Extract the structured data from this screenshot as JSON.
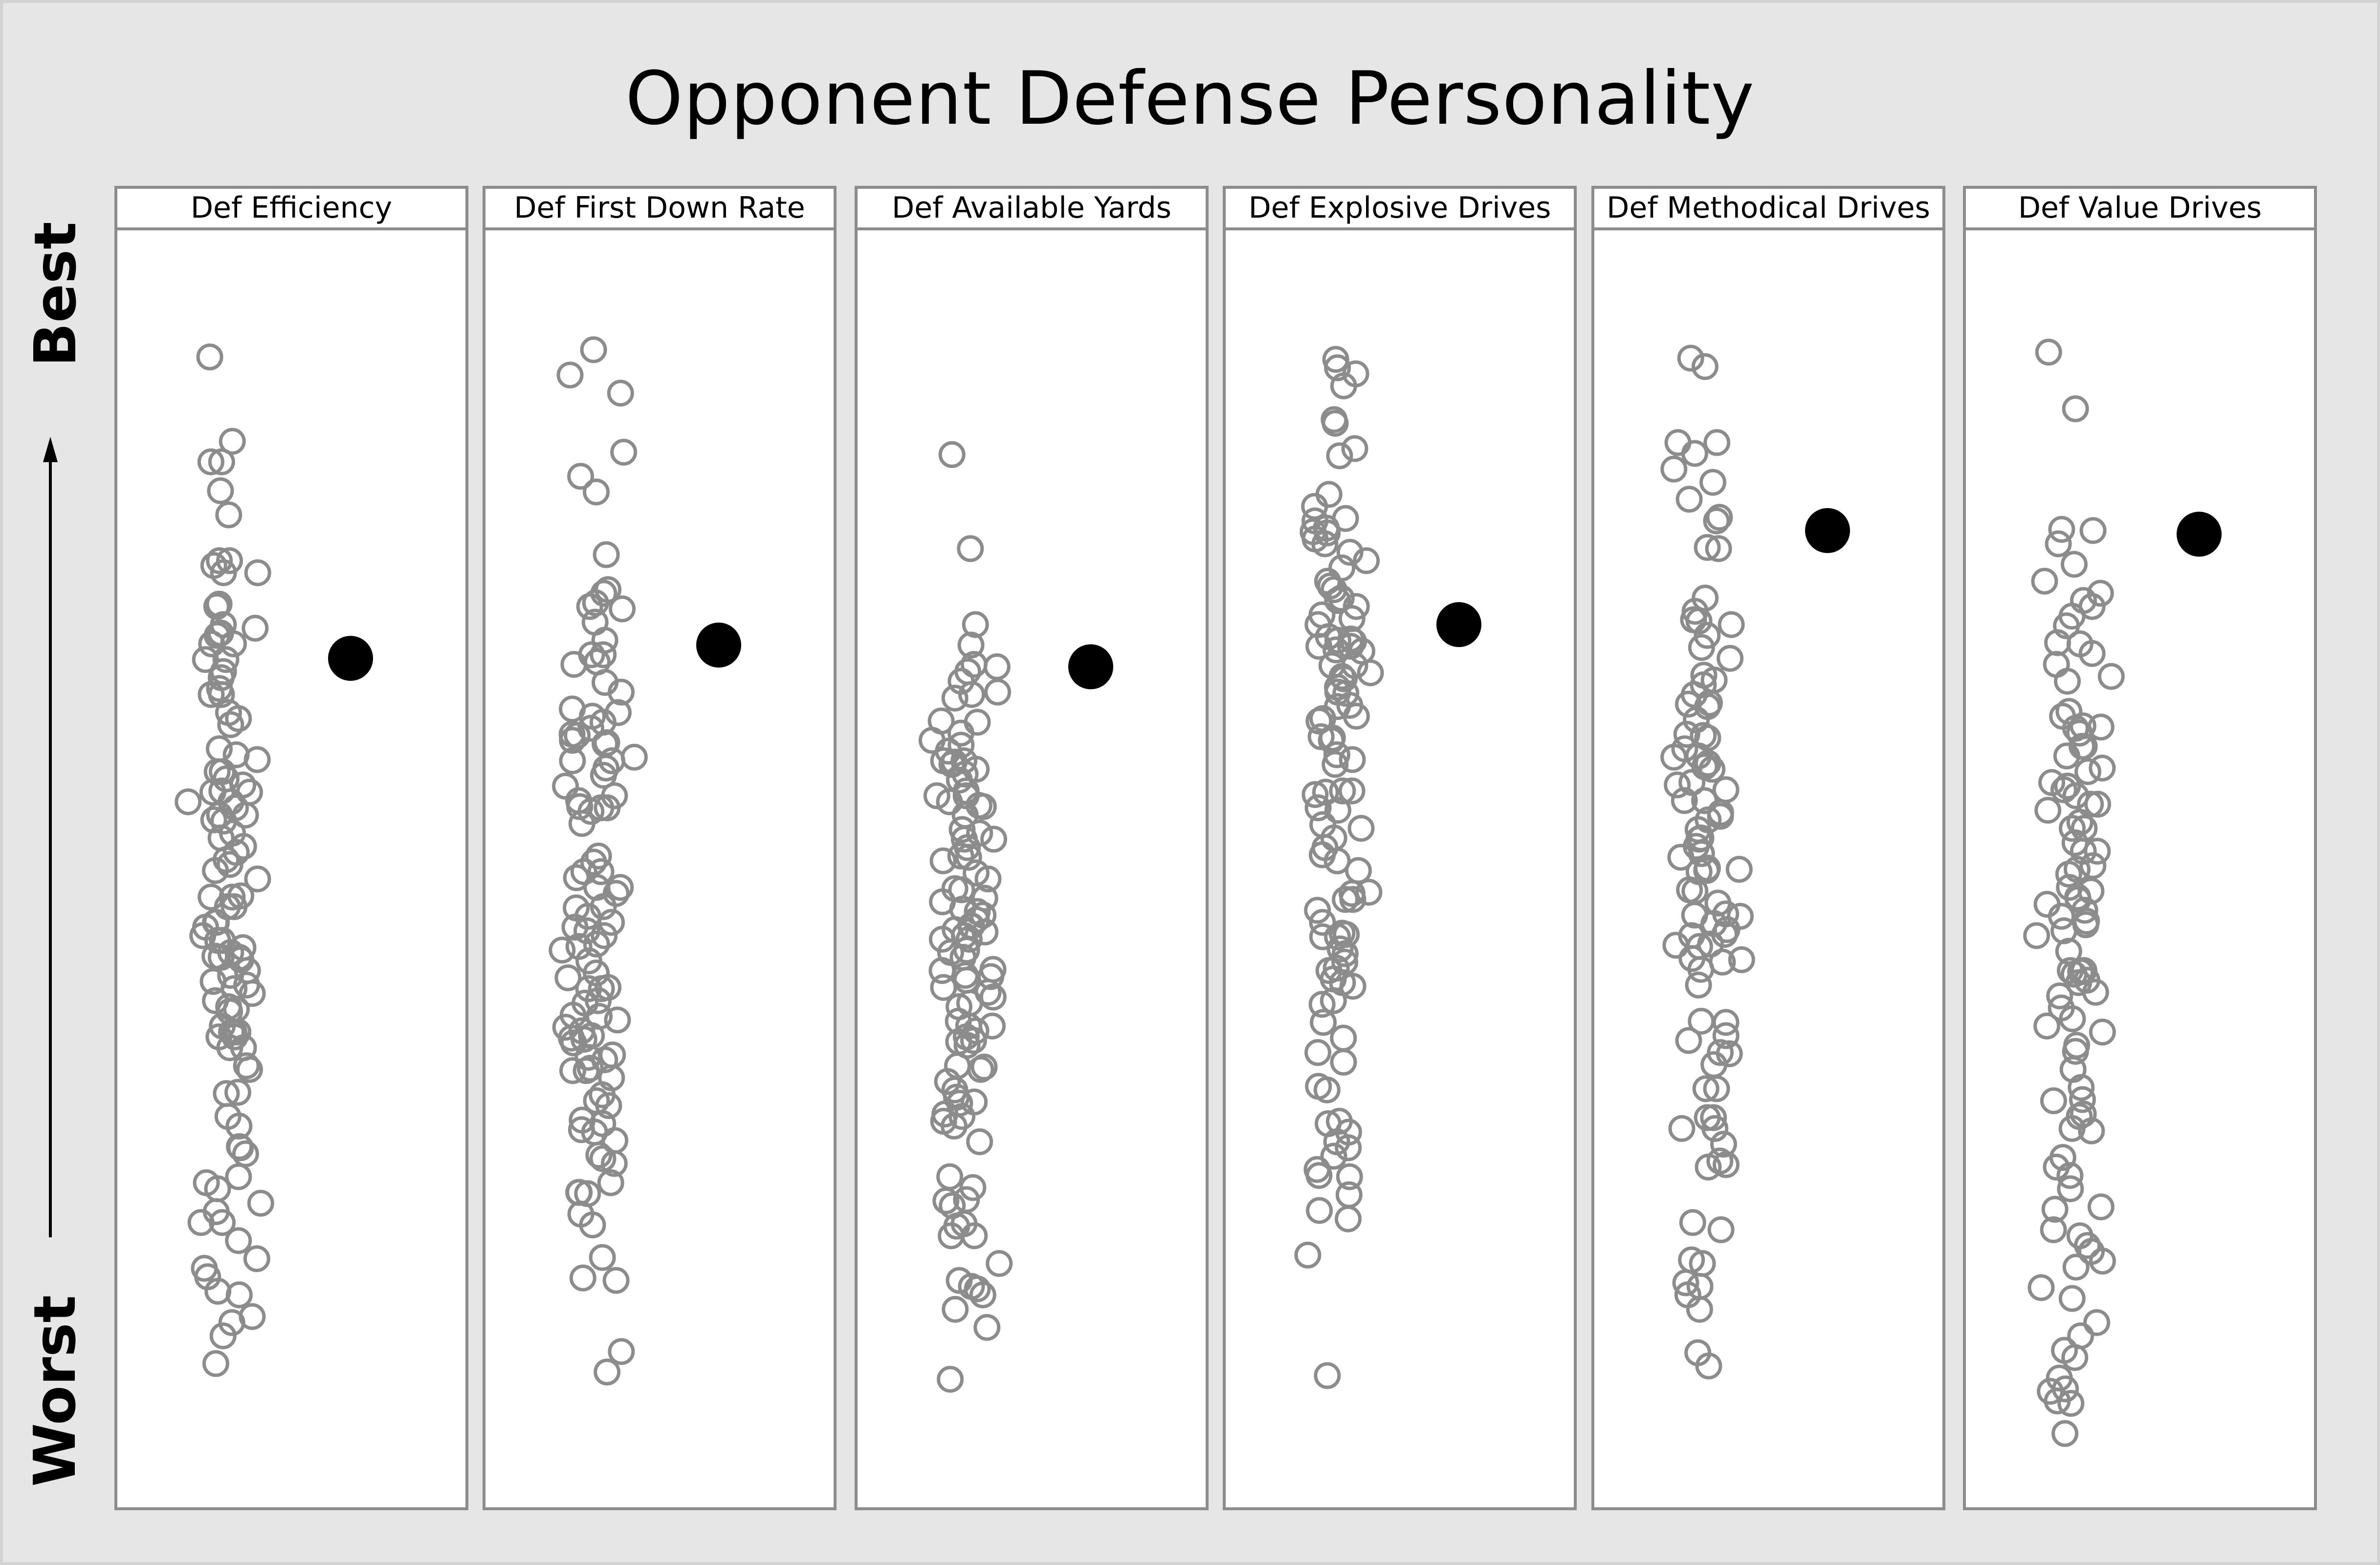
{
  "chart_data": {
    "type": "scatter",
    "title": "Opponent Defense Personality",
    "y_axis": {
      "top_label": "Best",
      "bottom_label": "Worst",
      "direction": "up",
      "ylim": [
        0,
        100
      ]
    },
    "grid": false,
    "legend": "none",
    "colors": {
      "others": "#8c8c8c",
      "highlight": "#000000",
      "panel_border": "#8c8c8c",
      "background": "#e6e6e6"
    },
    "panels": [
      {
        "name": "Def Efficiency",
        "highlight": {
          "y": 67.5
        },
        "seed": 11,
        "others": [
          92.5,
          85.5,
          83.8,
          83.8,
          81.4,
          79.4,
          75.6,
          75.6,
          75.2,
          74.6,
          74.6,
          72.0,
          71.8,
          70.3,
          70.0,
          69.6,
          69.6,
          69.4,
          68.7,
          68.7,
          67.4,
          67.4,
          66.4,
          65.9,
          65.0,
          64.5,
          64.5,
          63.0,
          62.5,
          62.0,
          60.0,
          59.5,
          59.1,
          58.1,
          58.1,
          57.5,
          57.0,
          56.5,
          56.4,
          56.4,
          55.6,
          55.6,
          55.1,
          54.5,
          54.5,
          54.1,
          54.0,
          53.0,
          52.6,
          51.9,
          51.4,
          50.8,
          50.4,
          49.9,
          49.2,
          47.8,
          47.7,
          47.7,
          46.9,
          46.9,
          45.6,
          45.6,
          45.2,
          44.5,
          44.1,
          44.1,
          43.5,
          43.1,
          42.8,
          42.7,
          42.7,
          42.5,
          41.6,
          41.2,
          40.7,
          40.4,
          40.1,
          39.7,
          39.1,
          38.6,
          38.4,
          38.2,
          37.0,
          36.5,
          36.5,
          36.5,
          36.1,
          36.1,
          35.2,
          35.2,
          33.7,
          33.4,
          31.5,
          31.4,
          29.5,
          28.7,
          27.0,
          26.9,
          26.4,
          24.5,
          24.0,
          23.5,
          22.3,
          21.6,
          20.7,
          20.7,
          19.2,
          17.7,
          16.9,
          16.2,
          15.0,
          14.7,
          12.9,
          12.4,
          11.3,
          9.0
        ]
      },
      {
        "name": "Def First Down Rate",
        "highlight": {
          "y": 68.6
        },
        "seed": 22,
        "others": [
          93.1,
          91.0,
          89.5,
          84.6,
          82.6,
          81.3,
          76.1,
          73.2,
          72.9,
          72.1,
          71.8,
          71.6,
          70.5,
          69.0,
          67.8,
          67.8,
          67.2,
          67.0,
          65.5,
          64.7,
          63.3,
          63.0,
          62.7,
          62.2,
          61.7,
          61.2,
          61.1,
          60.7,
          60.5,
          60.4,
          59.3,
          59.0,
          59.0,
          58.4,
          57.8,
          56.9,
          56.1,
          55.7,
          55.2,
          55.1,
          55.1,
          54.8,
          53.8,
          51.1,
          50.6,
          49.8,
          49.8,
          49.3,
          48.5,
          48.5,
          48.0,
          46.9,
          46.8,
          46.1,
          45.6,
          45.2,
          44.9,
          44.5,
          43.8,
          43.6,
          43.3,
          42.4,
          41.4,
          41.0,
          40.2,
          40.1,
          40.1,
          39.1,
          38.9,
          37.9,
          37.8,
          37.5,
          36.9,
          36.6,
          36.2,
          36.0,
          35.9,
          35.6,
          34.6,
          34.4,
          34.2,
          33.5,
          33.3,
          33.3,
          32.7,
          31.3,
          30.8,
          30.4,
          29.2,
          28.9,
          28.4,
          28.2,
          27.5,
          26.3,
          26.0,
          25.6,
          24.0,
          23.2,
          23.2,
          23.1,
          21.4,
          20.5,
          17.8,
          16.1,
          15.9,
          10.0,
          8.3
        ]
      },
      {
        "name": "Def Available Yards",
        "highlight": {
          "y": 66.8
        },
        "seed": 33,
        "others": [
          84.4,
          76.6,
          70.3,
          68.6,
          67.0,
          66.8,
          66.4,
          65.6,
          64.7,
          64.5,
          64.2,
          62.3,
          62.2,
          61.3,
          60.7,
          60.3,
          59.8,
          59.0,
          59.0,
          58.9,
          58.7,
          58.3,
          57.9,
          57.4,
          56.5,
          56.1,
          56.1,
          55.6,
          55.3,
          55.2,
          54.5,
          53.3,
          53.0,
          52.5,
          52.5,
          51.8,
          51.1,
          51.0,
          50.7,
          49.7,
          49.2,
          48.4,
          48.3,
          47.6,
          47.3,
          46.7,
          46.5,
          46.2,
          45.8,
          45.3,
          45.3,
          45.0,
          44.8,
          44.5,
          44.2,
          44.2,
          43.3,
          43.1,
          42.7,
          41.7,
          41.6,
          41.2,
          41.1,
          40.8,
          40.2,
          39.8,
          39.4,
          38.9,
          38.6,
          37.4,
          37.0,
          37.0,
          36.6,
          36.1,
          35.8,
          35.7,
          35.4,
          33.7,
          33.6,
          33.4,
          32.4,
          31.7,
          31.1,
          30.7,
          30.6,
          29.7,
          29.5,
          29.1,
          28.7,
          27.4,
          24.5,
          23.6,
          22.6,
          22.5,
          22.1,
          20.6,
          20.4,
          19.6,
          19.6,
          17.3,
          15.9,
          15.4,
          15.2,
          14.7,
          13.5,
          12.0,
          7.7
        ]
      },
      {
        "name": "Def Explosive Drives",
        "highlight": {
          "y": 70.3
        },
        "seed": 44,
        "others": [
          92.3,
          91.6,
          91.1,
          90.1,
          87.3,
          87.0,
          84.9,
          84.3,
          81.1,
          80.1,
          79.1,
          78.9,
          78.3,
          78.0,
          77.9,
          77.4,
          77.0,
          76.3,
          75.6,
          75.0,
          73.9,
          73.5,
          73.2,
          72.5,
          72.3,
          71.8,
          71.1,
          70.8,
          70.3,
          69.3,
          69.1,
          69.0,
          68.9,
          68.5,
          68.5,
          68.2,
          68.1,
          66.9,
          66.9,
          66.3,
          66.0,
          65.8,
          65.1,
          64.7,
          64.6,
          63.6,
          63.5,
          62.7,
          62.5,
          62.3,
          61.0,
          60.9,
          60.7,
          59.5,
          59.1,
          58.7,
          56.5,
          56.5,
          56.4,
          56.2,
          55.1,
          54.9,
          53.7,
          53.4,
          52.6,
          51.8,
          51.2,
          50.7,
          49.9,
          48.1,
          48.0,
          47.5,
          47.5,
          46.6,
          45.6,
          44.7,
          44.6,
          44.4,
          44.4,
          43.4,
          43.0,
          42.3,
          41.8,
          41.6,
          40.9,
          40.6,
          40.3,
          39.1,
          38.8,
          37.3,
          36.0,
          34.8,
          34.0,
          32.0,
          31.7,
          29.1,
          28.9,
          28.2,
          27.4,
          26.9,
          26.2,
          25.1,
          24.6,
          24.5,
          23.0,
          21.7,
          21.0,
          18.0,
          8.0
        ]
      },
      {
        "name": "Def Methodical Drives",
        "highlight": {
          "y": 78.1
        },
        "seed": 55,
        "others": [
          92.4,
          91.7,
          85.4,
          85.4,
          84.5,
          83.2,
          82.1,
          80.7,
          79.2,
          78.9,
          76.7,
          76.6,
          72.5,
          71.4,
          70.7,
          70.6,
          70.3,
          69.4,
          68.4,
          67.5,
          66.1,
          65.7,
          65.3,
          64.5,
          63.8,
          63.7,
          63.5,
          62.4,
          61.2,
          61.1,
          60.9,
          60.0,
          59.4,
          59.3,
          58.8,
          58.6,
          58.5,
          58.3,
          57.2,
          57.0,
          56.6,
          55.7,
          55.7,
          54.7,
          54.4,
          54.1,
          53.3,
          52.6,
          52.5,
          51.9,
          51.3,
          51.0,
          50.1,
          50.0,
          49.9,
          49.8,
          48.3,
          48.2,
          47.2,
          46.3,
          46.2,
          46.1,
          45.5,
          45.0,
          44.6,
          44.5,
          43.8,
          43.7,
          43.6,
          42.6,
          42.5,
          42.3,
          41.7,
          40.4,
          37.4,
          37.3,
          36.2,
          35.8,
          34.8,
          34.7,
          33.8,
          31.8,
          31.8,
          29.4,
          29.4,
          28.5,
          28.5,
          27.2,
          25.8,
          25.5,
          25.3,
          20.7,
          20.1,
          17.6,
          17.3,
          15.7,
          15.4,
          14.7,
          13.5,
          9.9,
          8.8
        ]
      },
      {
        "name": "Def Value Drives",
        "highlight": {
          "y": 77.8
        },
        "seed": 66,
        "others": [
          92.9,
          88.2,
          78.2,
          78.1,
          77.0,
          75.3,
          73.9,
          72.9,
          72.3,
          71.8,
          71.0,
          70.2,
          68.8,
          68.7,
          67.9,
          67.0,
          66.0,
          65.6,
          63.1,
          62.7,
          61.9,
          61.8,
          61.7,
          61.3,
          60.2,
          60.2,
          59.4,
          58.4,
          58.1,
          57.2,
          56.9,
          56.6,
          56.1,
          55.4,
          55.4,
          54.9,
          53.9,
          53.4,
          53.4,
          52.2,
          51.5,
          51.5,
          50.3,
          50.0,
          49.6,
          48.5,
          48.2,
          47.7,
          47.5,
          47.1,
          46.6,
          46.1,
          45.7,
          45.4,
          44.9,
          44.5,
          43.2,
          41.6,
          41.6,
          41.5,
          41.3,
          40.8,
          40.6,
          39.8,
          39.5,
          38.5,
          37.6,
          37.0,
          36.5,
          35.4,
          34.9,
          33.4,
          31.9,
          30.9,
          30.8,
          29.7,
          29.5,
          28.5,
          28.3,
          26.1,
          25.3,
          24.6,
          23.5,
          22.0,
          21.8,
          20.1,
          19.6,
          18.8,
          18.3,
          17.5,
          17.0,
          15.3,
          14.4,
          12.4,
          11.3,
          10.1,
          9.5,
          7.8,
          6.9,
          6.7,
          5.9,
          5.7,
          3.2
        ]
      }
    ]
  }
}
